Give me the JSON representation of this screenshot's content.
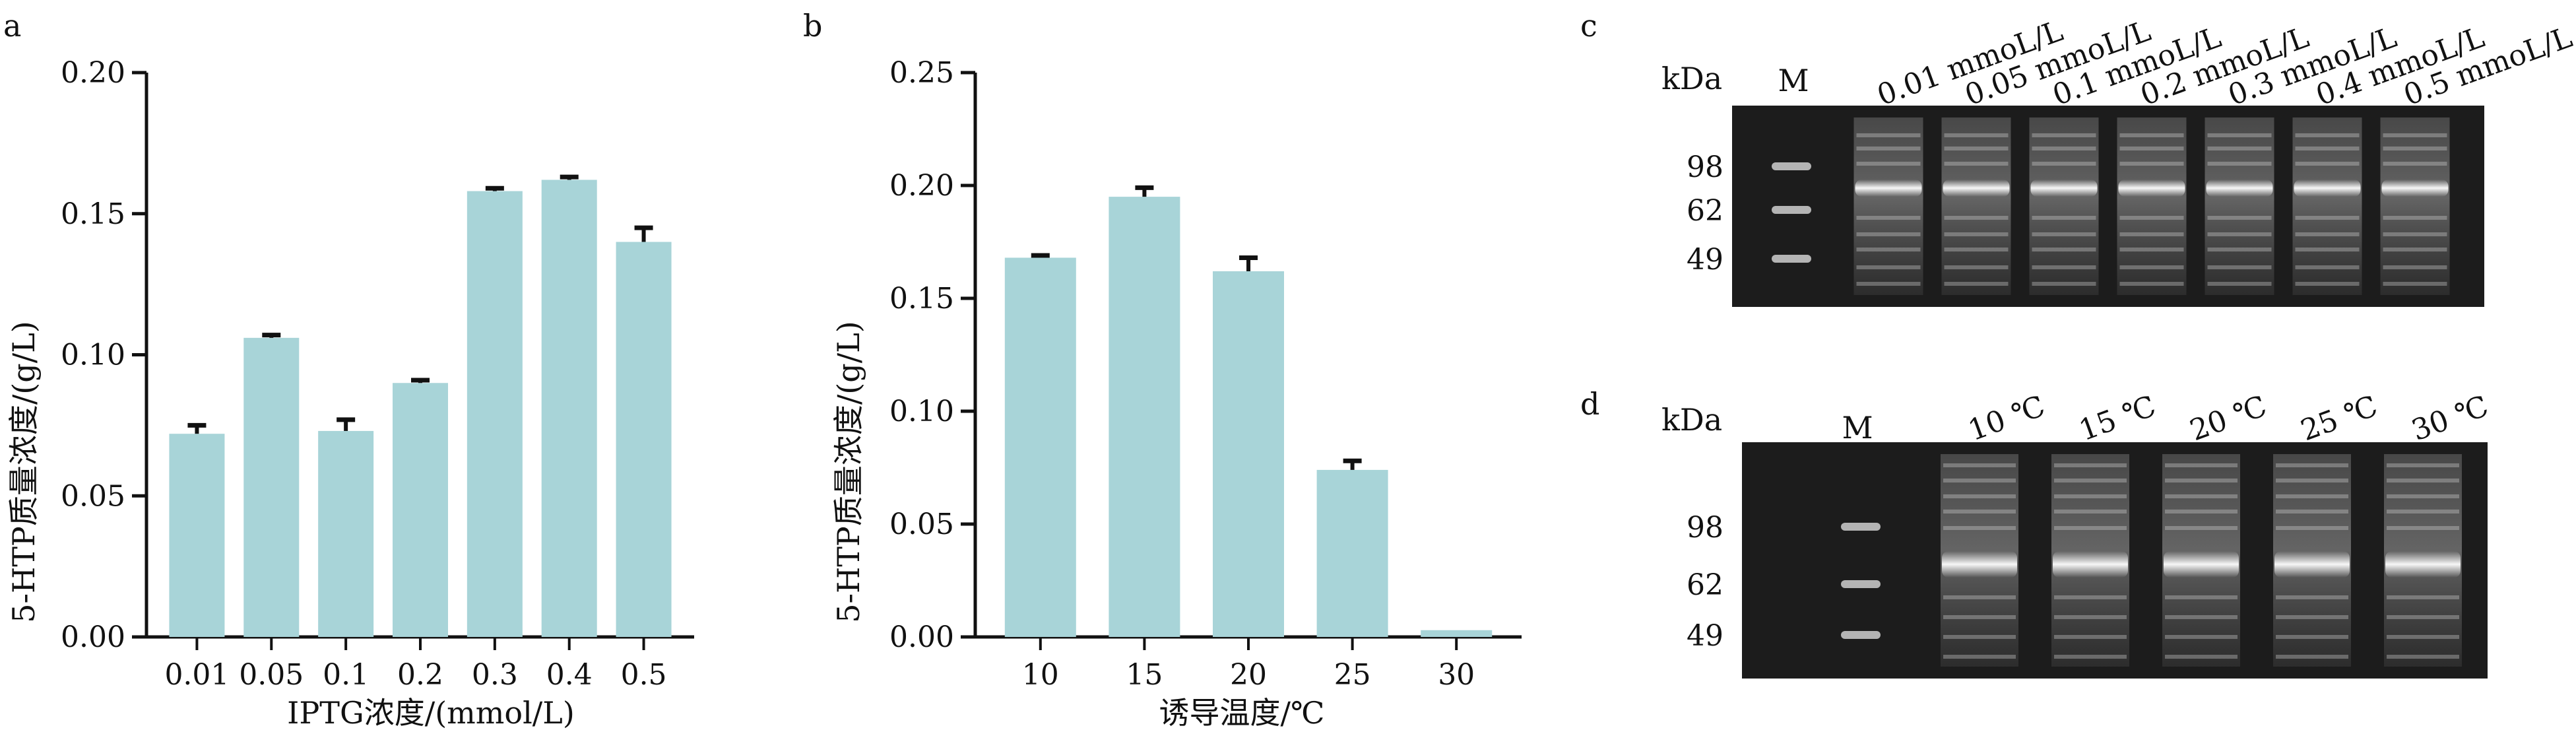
{
  "colors": {
    "bar": "#a8d4d8",
    "axis": "#111111",
    "err": "#111111",
    "gel_bg": "#1c1c1c",
    "band": "#e8e8e8"
  },
  "chart_data": [
    {
      "panel": "a",
      "type": "bar",
      "xlabel": "IPTG浓度/(mmol/L)",
      "ylabel": "5-HTP质量浓度/(g/L)",
      "ylim": [
        0,
        0.2
      ],
      "ytick_labels": [
        "0.00",
        "0.05",
        "0.10",
        "0.15",
        "0.20"
      ],
      "categories": [
        "0.01",
        "0.05",
        "0.1",
        "0.2",
        "0.3",
        "0.4",
        "0.5"
      ],
      "values": [
        0.072,
        0.106,
        0.073,
        0.09,
        0.158,
        0.162,
        0.14
      ],
      "errors": [
        0.003,
        0.001,
        0.004,
        0.001,
        0.001,
        0.001,
        0.005
      ]
    },
    {
      "panel": "b",
      "type": "bar",
      "xlabel": "诱导温度/℃",
      "ylabel": "5-HTP质量浓度/(g/L)",
      "ylim": [
        0,
        0.25
      ],
      "ytick_labels": [
        "0.00",
        "0.05",
        "0.10",
        "0.15",
        "0.20",
        "0.25"
      ],
      "categories": [
        "10",
        "15",
        "20",
        "25",
        "30"
      ],
      "values": [
        0.168,
        0.195,
        0.162,
        0.074,
        0.003
      ],
      "errors": [
        0.001,
        0.004,
        0.006,
        0.004,
        0.0
      ]
    }
  ],
  "gels": [
    {
      "panel": "c",
      "unit": "kDa",
      "marker_label": "M",
      "markers": [
        "98",
        "62",
        "49"
      ],
      "lanes": [
        "0.01 mmoL/L",
        "0.05 mmoL/L",
        "0.1 mmoL/L",
        "0.2 mmoL/L",
        "0.3 mmoL/L",
        "0.4 mmoL/L",
        "0.5 mmoL/L"
      ]
    },
    {
      "panel": "d",
      "unit": "kDa",
      "marker_label": "M",
      "markers": [
        "98",
        "62",
        "49"
      ],
      "lanes": [
        "10 ℃",
        "15 ℃",
        "20 ℃",
        "25 ℃",
        "30 ℃"
      ]
    }
  ]
}
